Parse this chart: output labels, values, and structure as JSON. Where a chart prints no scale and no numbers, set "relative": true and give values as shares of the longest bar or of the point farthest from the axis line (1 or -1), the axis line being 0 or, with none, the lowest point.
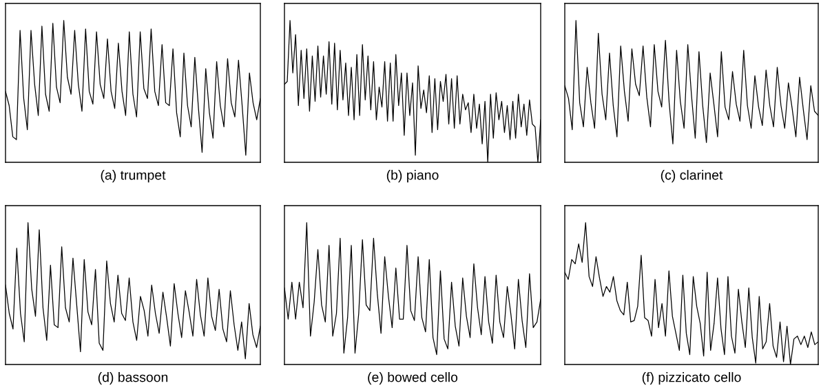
{
  "chart_data": [
    {
      "type": "line",
      "xlabel": "(a) trumpet",
      "relative": true,
      "color": "#000000",
      "categories": [
        null,
        null,
        null,
        null,
        null,
        null,
        null,
        null,
        null,
        null,
        null,
        null,
        null,
        null,
        null,
        null,
        null,
        null,
        null,
        null,
        null,
        null,
        null,
        null,
        null,
        null,
        null,
        null,
        null,
        null,
        null,
        null,
        null,
        null,
        null,
        null,
        null,
        null,
        null,
        null,
        null,
        null,
        null,
        null,
        null,
        null,
        null,
        null,
        null,
        null,
        null,
        null,
        null,
        null,
        null,
        null,
        null,
        null,
        null,
        null,
        null,
        null,
        null,
        null,
        null,
        null,
        null,
        null,
        null,
        null,
        null
      ],
      "values": [
        0.5,
        0.4,
        0.18,
        0.16,
        0.93,
        0.45,
        0.23,
        0.93,
        0.55,
        0.33,
        0.96,
        0.48,
        0.36,
        0.98,
        0.53,
        0.42,
        1.0,
        0.6,
        0.48,
        0.93,
        0.55,
        0.36,
        0.94,
        0.5,
        0.41,
        0.92,
        0.55,
        0.45,
        0.87,
        0.5,
        0.38,
        0.84,
        0.5,
        0.33,
        0.92,
        0.48,
        0.32,
        0.92,
        0.52,
        0.45,
        0.94,
        0.5,
        0.4,
        0.83,
        0.42,
        0.4,
        0.8,
        0.35,
        0.18,
        0.77,
        0.4,
        0.25,
        0.74,
        0.38,
        0.07,
        0.66,
        0.35,
        0.17,
        0.71,
        0.4,
        0.25,
        0.73,
        0.42,
        0.32,
        0.72,
        0.4,
        0.05,
        0.63,
        0.42,
        0.3,
        0.45
      ]
    },
    {
      "type": "line",
      "xlabel": "(b) piano",
      "relative": true,
      "color": "#000000",
      "categories": [
        null,
        null,
        null,
        null,
        null,
        null,
        null,
        null,
        null,
        null,
        null,
        null,
        null,
        null,
        null,
        null,
        null,
        null,
        null,
        null,
        null,
        null,
        null,
        null,
        null,
        null,
        null,
        null,
        null,
        null,
        null,
        null,
        null,
        null,
        null,
        null,
        null,
        null,
        null,
        null,
        null,
        null,
        null,
        null,
        null,
        null,
        null,
        null,
        null,
        null,
        null,
        null,
        null,
        null,
        null,
        null,
        null,
        null,
        null,
        null,
        null,
        null,
        null,
        null,
        null,
        null,
        null,
        null,
        null,
        null,
        null,
        null,
        null,
        null,
        null,
        null,
        null,
        null,
        null,
        null,
        null,
        null,
        null,
        null,
        null,
        null,
        null,
        null,
        null,
        null,
        null,
        null,
        null
      ],
      "values": [
        0.55,
        0.57,
        1.0,
        0.63,
        0.9,
        0.4,
        0.79,
        0.45,
        0.8,
        0.36,
        0.75,
        0.43,
        0.82,
        0.46,
        0.75,
        0.48,
        0.85,
        0.41,
        0.84,
        0.37,
        0.79,
        0.44,
        0.7,
        0.33,
        0.67,
        0.3,
        0.76,
        0.33,
        0.83,
        0.44,
        0.75,
        0.37,
        0.71,
        0.3,
        0.53,
        0.39,
        0.71,
        0.29,
        0.7,
        0.29,
        0.76,
        0.4,
        0.63,
        0.19,
        0.63,
        0.33,
        0.56,
        0.05,
        0.68,
        0.38,
        0.51,
        0.35,
        0.61,
        0.21,
        0.59,
        0.23,
        0.57,
        0.43,
        0.62,
        0.27,
        0.59,
        0.24,
        0.61,
        0.27,
        0.48,
        0.37,
        0.42,
        0.21,
        0.48,
        0.24,
        0.41,
        0.13,
        0.43,
        0.0,
        0.48,
        0.17,
        0.49,
        0.3,
        0.43,
        0.21,
        0.4,
        0.16,
        0.43,
        0.17,
        0.48,
        0.25,
        0.41,
        0.19,
        0.44,
        0.27,
        0.25,
        0.0,
        0.3
      ]
    },
    {
      "type": "line",
      "xlabel": "(c) clarinet",
      "relative": true,
      "color": "#000000",
      "categories": [
        null,
        null,
        null,
        null,
        null,
        null,
        null,
        null,
        null,
        null,
        null,
        null,
        null,
        null,
        null,
        null,
        null,
        null,
        null,
        null,
        null,
        null,
        null,
        null,
        null,
        null,
        null,
        null,
        null,
        null,
        null,
        null,
        null,
        null,
        null,
        null,
        null,
        null,
        null,
        null,
        null,
        null,
        null,
        null,
        null,
        null,
        null,
        null,
        null,
        null,
        null,
        null,
        null,
        null,
        null,
        null,
        null,
        null,
        null,
        null,
        null,
        null,
        null,
        null,
        null,
        null,
        null,
        null,
        null
      ],
      "values": [
        0.54,
        0.45,
        0.23,
        1.0,
        0.42,
        0.25,
        0.67,
        0.42,
        0.24,
        0.91,
        0.48,
        0.3,
        0.77,
        0.4,
        0.18,
        0.82,
        0.5,
        0.29,
        0.8,
        0.55,
        0.47,
        0.82,
        0.46,
        0.25,
        0.83,
        0.5,
        0.39,
        0.86,
        0.42,
        0.13,
        0.79,
        0.43,
        0.24,
        0.83,
        0.47,
        0.17,
        0.78,
        0.4,
        0.14,
        0.63,
        0.41,
        0.18,
        0.78,
        0.39,
        0.3,
        0.64,
        0.41,
        0.29,
        0.79,
        0.4,
        0.24,
        0.61,
        0.39,
        0.26,
        0.65,
        0.4,
        0.25,
        0.67,
        0.4,
        0.24,
        0.56,
        0.38,
        0.18,
        0.6,
        0.37,
        0.16,
        0.54,
        0.36,
        0.33
      ]
    },
    {
      "type": "line",
      "xlabel": "(d) bassoon",
      "relative": true,
      "color": "#000000",
      "categories": [
        null,
        null,
        null,
        null,
        null,
        null,
        null,
        null,
        null,
        null,
        null,
        null,
        null,
        null,
        null,
        null,
        null,
        null,
        null,
        null,
        null,
        null,
        null,
        null,
        null,
        null,
        null,
        null,
        null,
        null,
        null,
        null,
        null,
        null,
        null,
        null,
        null,
        null,
        null,
        null,
        null,
        null,
        null,
        null,
        null,
        null,
        null,
        null,
        null,
        null,
        null,
        null,
        null,
        null,
        null,
        null,
        null,
        null,
        null,
        null,
        null,
        null,
        null,
        null,
        null,
        null,
        null,
        null,
        null
      ],
      "values": [
        0.56,
        0.36,
        0.25,
        0.82,
        0.36,
        0.16,
        1.0,
        0.53,
        0.34,
        0.95,
        0.4,
        0.17,
        0.7,
        0.28,
        0.26,
        0.83,
        0.4,
        0.3,
        0.75,
        0.42,
        0.09,
        0.74,
        0.37,
        0.28,
        0.67,
        0.15,
        0.1,
        0.73,
        0.43,
        0.3,
        0.63,
        0.36,
        0.31,
        0.61,
        0.3,
        0.17,
        0.48,
        0.38,
        0.2,
        0.56,
        0.36,
        0.22,
        0.51,
        0.33,
        0.13,
        0.57,
        0.36,
        0.19,
        0.52,
        0.37,
        0.2,
        0.6,
        0.35,
        0.2,
        0.61,
        0.34,
        0.24,
        0.53,
        0.25,
        0.16,
        0.52,
        0.28,
        0.1,
        0.3,
        0.04,
        0.43,
        0.21,
        0.12,
        0.27
      ]
    },
    {
      "type": "line",
      "xlabel": "(e) bowed cello",
      "relative": true,
      "color": "#000000",
      "categories": [
        null,
        null,
        null,
        null,
        null,
        null,
        null,
        null,
        null,
        null,
        null,
        null,
        null,
        null,
        null,
        null,
        null,
        null,
        null,
        null,
        null,
        null,
        null,
        null,
        null,
        null,
        null,
        null,
        null,
        null,
        null,
        null,
        null,
        null,
        null,
        null,
        null,
        null,
        null,
        null,
        null,
        null,
        null,
        null,
        null,
        null,
        null,
        null,
        null,
        null,
        null,
        null,
        null,
        null,
        null,
        null,
        null,
        null,
        null,
        null,
        null,
        null,
        null,
        null,
        null,
        null,
        null,
        null,
        null,
        null
      ],
      "values": [
        0.54,
        0.32,
        0.58,
        0.32,
        0.58,
        0.4,
        1.0,
        0.2,
        0.44,
        0.81,
        0.42,
        0.3,
        0.84,
        0.2,
        0.36,
        0.89,
        0.08,
        0.33,
        0.84,
        0.08,
        0.36,
        0.88,
        0.42,
        0.38,
        0.89,
        0.5,
        0.22,
        0.76,
        0.48,
        0.26,
        0.68,
        0.32,
        0.32,
        0.84,
        0.38,
        0.31,
        0.76,
        0.33,
        0.23,
        0.74,
        0.19,
        0.07,
        0.66,
        0.18,
        0.11,
        0.58,
        0.27,
        0.13,
        0.61,
        0.34,
        0.19,
        0.71,
        0.4,
        0.21,
        0.62,
        0.3,
        0.15,
        0.63,
        0.3,
        0.19,
        0.55,
        0.35,
        0.11,
        0.6,
        0.31,
        0.12,
        0.64,
        0.26,
        0.3,
        0.46
      ]
    },
    {
      "type": "line",
      "xlabel": "(f) pizzicato cello",
      "relative": true,
      "color": "#000000",
      "categories": [
        null,
        null,
        null,
        null,
        null,
        null,
        null,
        null,
        null,
        null,
        null,
        null,
        null,
        null,
        null,
        null,
        null,
        null,
        null,
        null,
        null,
        null,
        null,
        null,
        null,
        null,
        null,
        null,
        null,
        null,
        null,
        null,
        null,
        null,
        null,
        null,
        null,
        null,
        null,
        null,
        null,
        null,
        null,
        null,
        null,
        null,
        null,
        null,
        null,
        null,
        null,
        null,
        null,
        null,
        null,
        null,
        null,
        null,
        null,
        null,
        null,
        null,
        null,
        null,
        null,
        null,
        null,
        null,
        null,
        null,
        null,
        null,
        null,
        null
      ],
      "values": [
        0.65,
        0.6,
        0.74,
        0.71,
        0.85,
        0.72,
        1.0,
        0.62,
        0.55,
        0.76,
        0.61,
        0.48,
        0.55,
        0.51,
        0.62,
        0.45,
        0.38,
        0.35,
        0.58,
        0.3,
        0.31,
        0.41,
        0.77,
        0.33,
        0.31,
        0.2,
        0.6,
        0.26,
        0.43,
        0.2,
        0.66,
        0.34,
        0.22,
        0.1,
        0.63,
        0.22,
        0.07,
        0.62,
        0.41,
        0.29,
        0.06,
        0.65,
        0.1,
        0.29,
        0.61,
        0.25,
        0.07,
        0.62,
        0.2,
        0.08,
        0.53,
        0.3,
        0.12,
        0.54,
        0.19,
        0.01,
        0.48,
        0.11,
        0.16,
        0.43,
        0.13,
        0.05,
        0.3,
        0.02,
        0.27,
        0.0,
        0.18,
        0.2,
        0.14,
        0.2,
        0.12,
        0.23,
        0.14,
        0.16
      ]
    }
  ]
}
